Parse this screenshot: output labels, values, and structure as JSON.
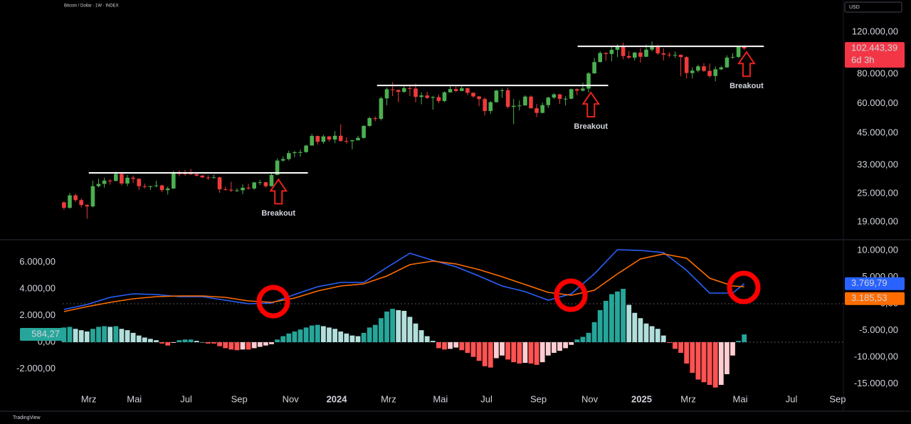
{
  "chart_data": [
    {
      "type": "candlestick",
      "title": "Bitcoin / Dollar · 1W · INDEX",
      "currency": "USD",
      "up_color": "#4caf50",
      "down_color": "#ef3b3b",
      "candles": [
        [
          23000,
          23200,
          21400,
          21800
        ],
        [
          21800,
          25200,
          21600,
          24600
        ],
        [
          24600,
          25000,
          23100,
          23500
        ],
        [
          23500,
          23900,
          21900,
          22400
        ],
        [
          22400,
          22600,
          19600,
          22100
        ],
        [
          22100,
          28400,
          21900,
          26900
        ],
        [
          26900,
          28900,
          26600,
          27500
        ],
        [
          27500,
          29200,
          26500,
          28400
        ],
        [
          28400,
          28800,
          27300,
          28300
        ],
        [
          28300,
          31000,
          28200,
          30300
        ],
        [
          30300,
          30400,
          27100,
          27600
        ],
        [
          27600,
          30000,
          26900,
          29200
        ],
        [
          29200,
          29800,
          27700,
          28900
        ],
        [
          28900,
          29000,
          25900,
          26900
        ],
        [
          26900,
          27600,
          26300,
          26700
        ],
        [
          26700,
          27000,
          25900,
          26900
        ],
        [
          26900,
          28400,
          26600,
          27100
        ],
        [
          27100,
          27300,
          25400,
          25900
        ],
        [
          25900,
          26800,
          24800,
          26300
        ],
        [
          26300,
          31200,
          26200,
          30500
        ],
        [
          30500,
          31300,
          29600,
          30450
        ],
        [
          30450,
          31500,
          29800,
          30300
        ],
        [
          30300,
          31800,
          30100,
          30250
        ],
        [
          30250,
          30400,
          29500,
          29800
        ],
        [
          29800,
          30000,
          29100,
          29300
        ],
        [
          29300,
          29900,
          28600,
          29100
        ],
        [
          29100,
          30100,
          29000,
          29300
        ],
        [
          29300,
          29500,
          25200,
          26100
        ],
        [
          26100,
          26800,
          25800,
          26000
        ],
        [
          26000,
          28100,
          25400,
          25800
        ],
        [
          25800,
          26400,
          25400,
          25850
        ],
        [
          25850,
          27400,
          24900,
          26500
        ],
        [
          26500,
          27500,
          26000,
          26300
        ],
        [
          26300,
          28000,
          26000,
          27900
        ],
        [
          27900,
          28600,
          27200,
          27950
        ],
        [
          27950,
          28000,
          26500,
          26900
        ],
        [
          26900,
          30400,
          26800,
          30000
        ],
        [
          30000,
          35200,
          29900,
          34500
        ],
        [
          34500,
          35900,
          34100,
          35000
        ],
        [
          35000,
          38000,
          34500,
          37100
        ],
        [
          37100,
          37900,
          35600,
          37400
        ],
        [
          37400,
          38400,
          35800,
          37450
        ],
        [
          37450,
          40200,
          37200,
          39900
        ],
        [
          39900,
          44700,
          39900,
          43800
        ],
        [
          43800,
          43900,
          40300,
          41400
        ],
        [
          41400,
          44300,
          40600,
          43600
        ],
        [
          43600,
          43800,
          41400,
          42300
        ],
        [
          42300,
          45900,
          40800,
          43900
        ],
        [
          43900,
          49000,
          41500,
          41700
        ],
        [
          41700,
          43200,
          40600,
          41600
        ],
        [
          41600,
          42200,
          38500,
          42000
        ],
        [
          42000,
          43900,
          41900,
          43000
        ],
        [
          43000,
          48600,
          42600,
          48300
        ],
        [
          48300,
          52800,
          47800,
          52100
        ],
        [
          52100,
          52900,
          50600,
          51700
        ],
        [
          51700,
          64000,
          50900,
          63100
        ],
        [
          63100,
          70100,
          59000,
          68900
        ],
        [
          68900,
          73800,
          64500,
          68400
        ],
        [
          68400,
          68900,
          60800,
          67200
        ],
        [
          67200,
          71700,
          66600,
          69700
        ],
        [
          69700,
          71300,
          64500,
          69400
        ],
        [
          69400,
          72800,
          60700,
          64000
        ],
        [
          64000,
          66900,
          59600,
          64900
        ],
        [
          64900,
          67200,
          62800,
          63400
        ],
        [
          63400,
          64700,
          56500,
          63900
        ],
        [
          63900,
          65500,
          60200,
          61500
        ],
        [
          61500,
          67600,
          60800,
          66900
        ],
        [
          66900,
          71900,
          66700,
          69100
        ],
        [
          69100,
          70600,
          67100,
          67800
        ],
        [
          67800,
          71900,
          67600,
          69600
        ],
        [
          69600,
          70200,
          65000,
          66600
        ],
        [
          66600,
          66900,
          63400,
          64300
        ],
        [
          64300,
          64500,
          58400,
          62700
        ],
        [
          62700,
          63800,
          53500,
          55800
        ],
        [
          55800,
          61400,
          54300,
          60800
        ],
        [
          60800,
          68400,
          60600,
          68100
        ],
        [
          68100,
          69400,
          63500,
          68300
        ],
        [
          68300,
          70000,
          57200,
          58100
        ],
        [
          58100,
          62700,
          49100,
          58700
        ],
        [
          58700,
          61800,
          56100,
          58900
        ],
        [
          58900,
          65000,
          58800,
          64200
        ],
        [
          64200,
          64900,
          57200,
          57300
        ],
        [
          57300,
          59800,
          52600,
          54800
        ],
        [
          54800,
          60600,
          54600,
          59100
        ],
        [
          59100,
          64100,
          57500,
          63600
        ],
        [
          63600,
          66500,
          62700,
          65600
        ],
        [
          65600,
          65900,
          59800,
          62800
        ],
        [
          62800,
          64500,
          58900,
          62900
        ],
        [
          62900,
          69400,
          62500,
          69000
        ],
        [
          69000,
          69500,
          65100,
          68000
        ],
        [
          68000,
          73600,
          67500,
          69400
        ],
        [
          69400,
          81500,
          66800,
          80400
        ],
        [
          80400,
          93400,
          80200,
          89800
        ],
        [
          89800,
          99600,
          89400,
          98000
        ],
        [
          98000,
          98700,
          90800,
          97100
        ],
        [
          97100,
          103900,
          90500,
          101100
        ],
        [
          101100,
          106500,
          94200,
          104500
        ],
        [
          104500,
          108300,
          92200,
          95200
        ],
        [
          95200,
          99900,
          92600,
          93700
        ],
        [
          93700,
          99000,
          91200,
          98400
        ],
        [
          98400,
          102700,
          89300,
          94500
        ],
        [
          94500,
          106400,
          94400,
          101300
        ],
        [
          101300,
          109600,
          99500,
          104800
        ],
        [
          104800,
          106500,
          96200,
          97700
        ],
        [
          97700,
          102500,
          91200,
          96500
        ],
        [
          96500,
          98800,
          94100,
          96100
        ],
        [
          96100,
          99500,
          93400,
          96300
        ],
        [
          96300,
          96500,
          78200,
          94200
        ],
        [
          94200,
          95000,
          76600,
          80700
        ],
        [
          80700,
          85300,
          76600,
          82600
        ],
        [
          82600,
          87500,
          81200,
          86100
        ],
        [
          86100,
          88800,
          81600,
          82400
        ],
        [
          82400,
          88500,
          77200,
          78400
        ],
        [
          78400,
          86100,
          74500,
          83700
        ],
        [
          83700,
          86400,
          83000,
          85200
        ],
        [
          85200,
          95800,
          85100,
          93700
        ],
        [
          93700,
          97900,
          92800,
          94300
        ],
        [
          94300,
          104900,
          93400,
          104600
        ],
        [
          104600,
          105800,
          100800,
          102443.39
        ]
      ],
      "xlim": [
        -11.1,
        135.2
      ],
      "xticks": [
        {
          "value": 4.3,
          "label": "Mrz"
        },
        {
          "value": 12.2,
          "label": "Mai"
        },
        {
          "value": 21.2,
          "label": "Jul"
        },
        {
          "value": 30.4,
          "label": "Sep"
        },
        {
          "value": 39.3,
          "label": "Nov"
        },
        {
          "value": 47.3,
          "label": "2024"
        },
        {
          "value": 56.3,
          "label": "Mrz"
        },
        {
          "value": 65.3,
          "label": "Mai"
        },
        {
          "value": 73.3,
          "label": "Jul"
        },
        {
          "value": 82.3,
          "label": "Sep"
        },
        {
          "value": 91.2,
          "label": "Nov"
        },
        {
          "value": 100.2,
          "label": "2025"
        },
        {
          "value": 108.3,
          "label": "Mrz"
        },
        {
          "value": 117.3,
          "label": "Mai"
        },
        {
          "value": 126.2,
          "label": "Jul"
        },
        {
          "value": 134.2,
          "label": "Sep"
        }
      ],
      "ylim": [
        16100,
        164000
      ],
      "yscale": "log",
      "yticks": [
        {
          "value": 120000,
          "label": "120.000,00"
        },
        {
          "value": 80000,
          "label": "80.000,00"
        },
        {
          "value": 60000,
          "label": "60.000,00"
        },
        {
          "value": 45000,
          "label": "45.000,00"
        },
        {
          "value": 33000,
          "label": "33.000,00"
        },
        {
          "value": 25000,
          "label": "25.000,00"
        },
        {
          "value": 19000,
          "label": "19.000,00"
        }
      ],
      "levels": [
        {
          "value": 30600,
          "start": 4.3,
          "end": 42.3
        },
        {
          "value": 71500,
          "start": 54.3,
          "end": 94.4
        },
        {
          "value": 104600,
          "start": 89.1,
          "end": 121.4
        }
      ],
      "annotations": [
        {
          "text": "Breakout",
          "x": 37.2,
          "value": 20600
        },
        {
          "text": "Breakout",
          "x": 91.4,
          "value": 47900
        },
        {
          "text": "Breakout",
          "x": 118.4,
          "value": 71000
        }
      ],
      "last_price": {
        "value": 102443.39,
        "label": "102.443,39"
      },
      "countdown": "6d 3h"
    },
    {
      "type": "macd",
      "ylim": [
        -5120,
        7627
      ],
      "yticks": [
        {
          "value": 6000,
          "label": "6.000,00"
        },
        {
          "value": 4000,
          "label": "4.000,00"
        },
        {
          "value": 2000,
          "label": "2.000,00"
        },
        {
          "value": 0,
          "label": "0,00"
        },
        {
          "value": -2000,
          "label": "-2.000,00"
        }
      ],
      "y2lim": [
        -20000,
        11867
      ],
      "y2ticks": [
        {
          "value": 10000,
          "label": "10.000,00"
        },
        {
          "value": 5000,
          "label": "5.000,00"
        },
        {
          "value": 0,
          "label": "0,00"
        },
        {
          "value": -5000,
          "label": "-5.000,00"
        },
        {
          "value": -10000,
          "label": "-10.000,00"
        },
        {
          "value": -15000,
          "label": "-15.000,00"
        }
      ],
      "x": [
        0,
        4,
        8,
        12,
        16,
        20,
        24,
        28,
        32,
        36,
        40,
        44,
        48,
        52,
        56,
        60,
        64,
        68,
        72,
        76,
        80,
        84,
        88,
        92,
        96,
        100,
        104,
        108,
        112,
        116,
        118
      ],
      "series": [
        {
          "color": "#2962ff",
          "axis": "y2",
          "values": [
            -1067,
            -133,
            1200,
            1867,
            1733,
            1333,
            1333,
            667,
            0,
            133,
            1733,
            3200,
            4000,
            4000,
            6800,
            9467,
            8133,
            6933,
            5200,
            3333,
            2267,
            667,
            1867,
            5600,
            10133,
            10000,
            9600,
            6267,
            2000,
            2000,
            3769.79
          ],
          "last_label": "3.769,79"
        },
        {
          "color": "#ff6d00",
          "axis": "y2",
          "values": [
            -1467,
            -533,
            267,
            933,
            1333,
            1467,
            1467,
            1200,
            533,
            267,
            1067,
            2400,
            3333,
            3733,
            5200,
            7333,
            8000,
            7467,
            6400,
            5067,
            3600,
            2133,
            1600,
            2533,
            5600,
            8400,
            9333,
            8533,
            4800,
            3333,
            3185.53
          ],
          "last_label": "3.185,53"
        }
      ],
      "histogram": {
        "colors": [
          "#26a69a",
          "#b2dfdb",
          "#ff5252",
          "#ffcdd2"
        ],
        "values": [
          1100,
          1150,
          1000,
          900,
          800,
          1000,
          1150,
          1200,
          1150,
          1200,
          1000,
          900,
          700,
          500,
          350,
          250,
          150,
          -100,
          -250,
          -50,
          150,
          200,
          200,
          100,
          0,
          -100,
          -100,
          -300,
          -450,
          -550,
          -600,
          -550,
          -550,
          -450,
          -350,
          -250,
          -150,
          200,
          450,
          650,
          800,
          950,
          1100,
          1250,
          1300,
          1200,
          1100,
          1000,
          800,
          650,
          500,
          450,
          700,
          1100,
          1300,
          1800,
          2300,
          2500,
          2400,
          2350,
          1900,
          1400,
          900,
          450,
          100,
          -450,
          -550,
          -500,
          -400,
          -600,
          -800,
          -1100,
          -1400,
          -1800,
          -1900,
          -1200,
          -1000,
          -1300,
          -1500,
          -1600,
          -1550,
          -1600,
          -1700,
          -1500,
          -1000,
          -800,
          -650,
          -450,
          -200,
          200,
          400,
          700,
          1500,
          2400,
          3100,
          3600,
          3800,
          4000,
          2800,
          2200,
          1800,
          1400,
          1200,
          1000,
          500,
          -50,
          -500,
          -800,
          -1600,
          -2300,
          -2800,
          -3000,
          -3200,
          -3400,
          -3200,
          -2400,
          -1000,
          100,
          584.27
        ],
        "last_label": "584,27"
      }
    }
  ],
  "footer": {
    "brand": "TradingView"
  }
}
